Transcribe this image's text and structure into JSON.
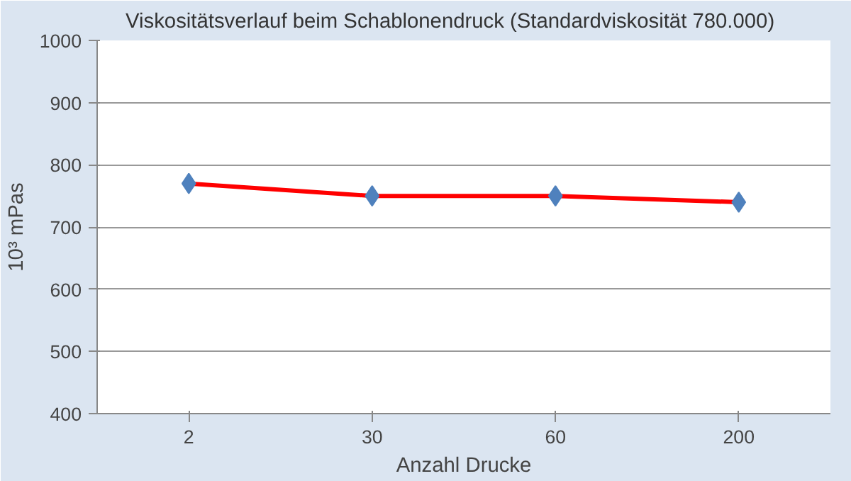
{
  "chart_data": {
    "type": "line",
    "title": "Viskositätsverlauf beim Schablonendruck (Standardviskosität 780.000)",
    "xlabel": "Anzahl Drucke",
    "ylabel": "10³ mPas",
    "categories": [
      "2",
      "30",
      "60",
      "200"
    ],
    "series": [
      {
        "color": "#ff0000",
        "colors": [
          "#4f81bd",
          "#4f81bd",
          "#4f81bd",
          "#4f81bd"
        ],
        "values": [
          770,
          750,
          750,
          740
        ]
      }
    ],
    "ylim": [
      400,
      1000
    ],
    "yticks": [
      400,
      500,
      600,
      700,
      800,
      900,
      1000
    ],
    "grid": "y",
    "marker": "diamond",
    "line_style": "solid"
  }
}
